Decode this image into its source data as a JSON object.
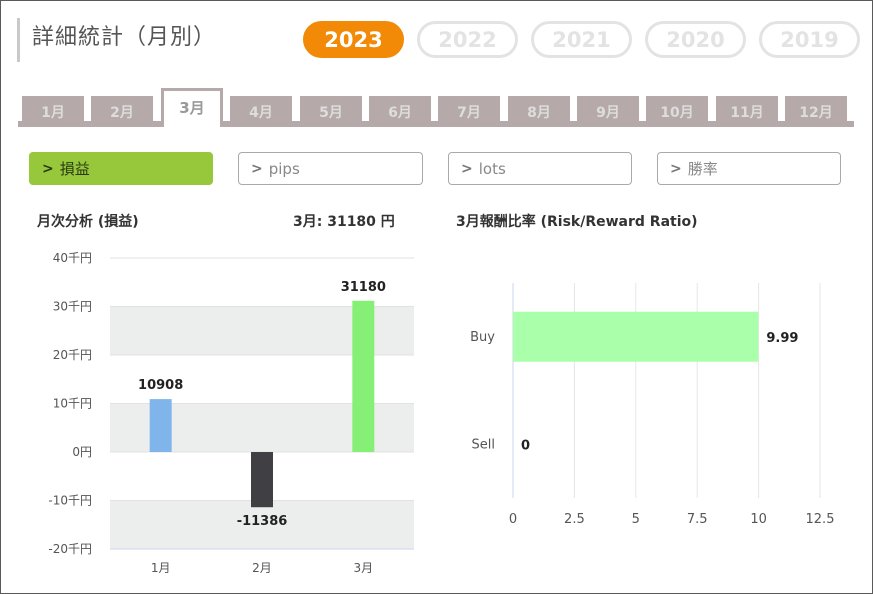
{
  "header": {
    "title": "詳細統計（月別）"
  },
  "years": [
    "2023",
    "2022",
    "2021",
    "2020",
    "2019"
  ],
  "active_year_index": 0,
  "months": [
    "1月",
    "2月",
    "3月",
    "4月",
    "5月",
    "6月",
    "7月",
    "8月",
    "9月",
    "10月",
    "11月",
    "12月"
  ],
  "active_month_index": 2,
  "filters": [
    "損益",
    "pips",
    "lots",
    "勝率"
  ],
  "active_filter_index": 0,
  "left_chart": {
    "title": "月次分析 (損益)",
    "summary": "3月:  31180 円"
  },
  "right_chart": {
    "title": "3月報酬比率 (Risk/Reward Ratio)"
  },
  "colors": {
    "accent": "#f28a07",
    "filter_active": "#97c83b",
    "tab": "#b6a9a9"
  },
  "chart_data": [
    {
      "type": "bar",
      "categories": [
        "1月",
        "2月",
        "3月"
      ],
      "values": [
        10908,
        -11386,
        31180
      ],
      "data_labels": [
        "10908",
        "-11386",
        "31180"
      ],
      "colors": [
        "#7fb5ea",
        "#3f3f44",
        "#85ef76"
      ],
      "ytick_labels": [
        "40千円",
        "30千円",
        "20千円",
        "10千円",
        "0円",
        "-10千円",
        "-20千円"
      ],
      "ytick_values": [
        40000,
        30000,
        20000,
        10000,
        0,
        -10000,
        -20000
      ],
      "ylim": [
        -20000,
        40000
      ],
      "grid": "banded"
    },
    {
      "type": "bar",
      "orientation": "horizontal",
      "categories": [
        "Buy",
        "Sell"
      ],
      "values": [
        9.99,
        0
      ],
      "data_labels": [
        "9.99",
        "0"
      ],
      "color": "#aaffaa",
      "xtick_labels": [
        "0",
        "2.5",
        "5",
        "7.5",
        "10",
        "12.5"
      ],
      "xtick_values": [
        0,
        2.5,
        5,
        7.5,
        10,
        12.5
      ],
      "xlim": [
        0,
        12.5
      ],
      "grid": true
    }
  ]
}
